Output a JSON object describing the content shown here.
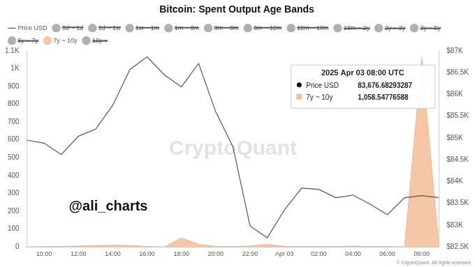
{
  "chart_data": {
    "type": "line",
    "title": "Bitcoin: Spent Output Age Bands",
    "categories": [
      null,
      "10:00",
      null,
      "12:00",
      null,
      "14:00",
      null,
      "16:00",
      null,
      "18:00",
      null,
      "20:00",
      null,
      "22:00",
      null,
      "Apr 03",
      null,
      "02:00",
      null,
      "04:00",
      null,
      "06:00",
      null,
      "08:00",
      null
    ],
    "series": [
      {
        "name": "Price USD",
        "type": "line",
        "axis": "y2",
        "color": "#555555",
        "values": [
          84950,
          84880,
          84620,
          85040,
          85200,
          85750,
          86570,
          86860,
          86450,
          86170,
          86710,
          85600,
          84800,
          82980,
          82710,
          83350,
          83850,
          83820,
          83630,
          83690,
          83480,
          83240,
          83630,
          83676.68293287,
          83630
        ]
      },
      {
        "name": "0d ~ 1d",
        "color": "#b0b0b0",
        "values": [
          null,
          null,
          null,
          null,
          null,
          null,
          null,
          null,
          null,
          null,
          null,
          null,
          null,
          null,
          null,
          null,
          null,
          null,
          null,
          null,
          null,
          null,
          null,
          null,
          null
        ]
      },
      {
        "name": "1d ~ 1w",
        "color": "#b0b0b0",
        "values": [
          null,
          null,
          null,
          null,
          null,
          null,
          null,
          null,
          null,
          null,
          null,
          null,
          null,
          null,
          null,
          null,
          null,
          null,
          null,
          null,
          null,
          null,
          null,
          null,
          null
        ]
      },
      {
        "name": "1w ~ 1m",
        "color": "#b0b0b0",
        "values": [
          null,
          null,
          null,
          null,
          null,
          null,
          null,
          null,
          null,
          null,
          null,
          null,
          null,
          null,
          null,
          null,
          null,
          null,
          null,
          null,
          null,
          null,
          null,
          null,
          null
        ]
      },
      {
        "name": "1m ~ 3m",
        "color": "#b0b0b0",
        "values": [
          null,
          null,
          null,
          null,
          null,
          null,
          null,
          null,
          null,
          null,
          null,
          null,
          null,
          null,
          null,
          null,
          null,
          null,
          null,
          null,
          null,
          null,
          null,
          null,
          null
        ]
      },
      {
        "name": "3m ~ 6m",
        "color": "#b0b0b0",
        "values": [
          null,
          null,
          null,
          null,
          null,
          null,
          null,
          null,
          null,
          null,
          null,
          null,
          null,
          null,
          null,
          null,
          null,
          null,
          null,
          null,
          null,
          null,
          null,
          null,
          null
        ]
      },
      {
        "name": "6m ~ 12m",
        "color": "#b0b0b0",
        "values": [
          null,
          null,
          null,
          null,
          null,
          null,
          null,
          null,
          null,
          null,
          null,
          null,
          null,
          null,
          null,
          null,
          null,
          null,
          null,
          null,
          null,
          null,
          null,
          null,
          null
        ]
      },
      {
        "name": "12m ~ 18m",
        "color": "#b0b0b0",
        "values": [
          null,
          null,
          null,
          null,
          null,
          null,
          null,
          null,
          null,
          null,
          null,
          null,
          null,
          null,
          null,
          null,
          null,
          null,
          null,
          null,
          null,
          null,
          null,
          null,
          null
        ]
      },
      {
        "name": "18m ~ 2y",
        "color": "#b0b0b0",
        "values": [
          null,
          null,
          null,
          null,
          null,
          null,
          null,
          null,
          null,
          null,
          null,
          null,
          null,
          null,
          null,
          null,
          null,
          null,
          null,
          null,
          null,
          null,
          null,
          null,
          null
        ]
      },
      {
        "name": "2y ~ 3y",
        "color": "#b0b0b0",
        "values": [
          null,
          null,
          null,
          null,
          null,
          null,
          null,
          null,
          null,
          null,
          null,
          null,
          null,
          null,
          null,
          null,
          null,
          null,
          null,
          null,
          null,
          null,
          null,
          null,
          null
        ]
      },
      {
        "name": "3y ~ 5y",
        "color": "#b0b0b0",
        "values": [
          null,
          null,
          null,
          null,
          null,
          null,
          null,
          null,
          null,
          null,
          null,
          null,
          null,
          null,
          null,
          null,
          null,
          null,
          null,
          null,
          null,
          null,
          null,
          null,
          null
        ]
      },
      {
        "name": "5y ~ 7y",
        "color": "#b0b0b0",
        "values": [
          null,
          null,
          null,
          null,
          null,
          null,
          null,
          null,
          null,
          null,
          null,
          null,
          null,
          null,
          null,
          null,
          null,
          null,
          null,
          null,
          null,
          null,
          null,
          null,
          null
        ]
      },
      {
        "name": "7y ~ 10y",
        "type": "area",
        "color": "#f2b488",
        "values": [
          0,
          2,
          3,
          5,
          8,
          10,
          8,
          3,
          0,
          50,
          15,
          3,
          2,
          5,
          15,
          3,
          2,
          3,
          2,
          5,
          2,
          3,
          0,
          1058.54776588,
          0
        ]
      },
      {
        "name": "10y ~",
        "color": "#b0b0b0",
        "values": [
          null,
          null,
          null,
          null,
          null,
          null,
          null,
          null,
          null,
          null,
          null,
          null,
          null,
          null,
          null,
          null,
          null,
          null,
          null,
          null,
          null,
          null,
          null,
          null,
          null
        ]
      }
    ],
    "ylim": [
      0,
      1100
    ],
    "yticks": [
      0,
      100,
      200,
      300,
      400,
      500,
      600,
      700,
      800,
      900,
      {
        "value": 1000,
        "label": "1K"
      },
      {
        "value": 1100,
        "label": "1.1K"
      }
    ],
    "y2lim": [
      82500,
      87000
    ],
    "y2ticks": [
      {
        "value": 82500,
        "label": "$82.5K"
      },
      {
        "value": 83000,
        "label": "$83K"
      },
      {
        "value": 83500,
        "label": "$83.5K"
      },
      {
        "value": 84000,
        "label": "$84K"
      },
      {
        "value": 84500,
        "label": "$84.5K"
      },
      {
        "value": 85000,
        "label": "$85K"
      },
      {
        "value": 85500,
        "label": "$85.5K"
      },
      {
        "value": 86000,
        "label": "$86K"
      },
      {
        "value": 86500,
        "label": "$86.5K"
      },
      {
        "value": 87000,
        "label": "$87K"
      }
    ],
    "grid": false,
    "legend": "top",
    "tooltip": {
      "title": "2025 Apr 03 08:00 UTC",
      "rows": [
        {
          "name": "Price USD",
          "value": "83,676.68293287"
        },
        {
          "name": "7y ~ 10y",
          "value": "1,058.54776588"
        }
      ]
    },
    "watermark": "CryptoQuant",
    "handle": "@ali_charts",
    "copyright": "© CryptoQuant. All rights reserved"
  }
}
